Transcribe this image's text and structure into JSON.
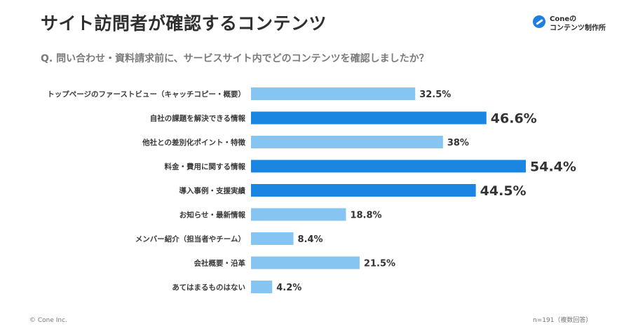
{
  "title": "サイト訪問者が確認するコンテンツ",
  "question": "Q. 問い合わせ・資料請求前に、サービスサイト内でどのコンテンツを確認しましたか？",
  "logo": {
    "line1": "Coneの",
    "line2": "コンテンツ制作所"
  },
  "footer": {
    "copyright": "© Cone Inc.",
    "note": "n=191（複数回答）"
  },
  "colors": {
    "highlight": "#1a86e2",
    "normal": "#86c4f2",
    "text": "#333333"
  },
  "chart_data": {
    "type": "bar",
    "orientation": "horizontal",
    "categories": [
      "トップページのファーストビュー（キャッチコピー・概要）",
      "自社の課題を解決できる情報",
      "他社との差別化ポイント・特徴",
      "料金・費用に関する情報",
      "導入事例・支援実績",
      "お知らせ・最新情報",
      "メンバー紹介（担当者やチーム）",
      "会社概要・沿革",
      "あてはまるものはない"
    ],
    "values": [
      32.5,
      46.6,
      38,
      54.4,
      44.5,
      18.8,
      8.4,
      21.5,
      4.2
    ],
    "value_labels": [
      "32.5%",
      "46.6%",
      "38%",
      "54.4%",
      "44.5%",
      "18.8%",
      "8.4%",
      "21.5%",
      "4.2%"
    ],
    "highlighted": [
      false,
      true,
      false,
      true,
      true,
      false,
      false,
      false,
      false
    ],
    "xlim": [
      0,
      54.4
    ],
    "grid": false
  }
}
